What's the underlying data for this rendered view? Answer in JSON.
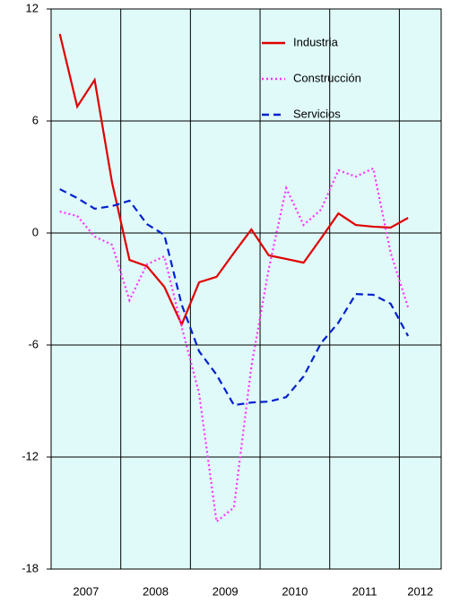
{
  "chart_data": {
    "type": "line",
    "x": [
      2007.125,
      2007.375,
      2007.625,
      2007.875,
      2008.125,
      2008.375,
      2008.625,
      2008.875,
      2009.125,
      2009.375,
      2009.625,
      2009.875,
      2010.125,
      2010.375,
      2010.625,
      2010.875,
      2011.125,
      2011.375,
      2011.625,
      2011.875,
      2012.125
    ],
    "xlim": [
      2007,
      2012.6
    ],
    "xticks": [
      {
        "value": 2007.5,
        "label": "2007"
      },
      {
        "value": 2008.5,
        "label": "2008"
      },
      {
        "value": 2009.5,
        "label": "2009"
      },
      {
        "value": 2010.5,
        "label": "2010"
      },
      {
        "value": 2011.5,
        "label": "2011"
      },
      {
        "value": 2012.3,
        "label": "2012"
      }
    ],
    "xgrid": [
      2008,
      2009,
      2010,
      2011,
      2012
    ],
    "ylim": [
      -18,
      12
    ],
    "yticks": [
      -18,
      -12,
      -6,
      0,
      6,
      12
    ],
    "grid": true,
    "background": "#e0fafa",
    "legend": "top-right",
    "series": [
      {
        "name": "Industria",
        "color": "#e00000",
        "style": "solid",
        "values": [
          10.66,
          6.77,
          8.2,
          2.7,
          -1.44,
          -1.78,
          -2.88,
          -4.9,
          -2.64,
          -2.35,
          -1.06,
          0.19,
          -1.2,
          -1.39,
          -1.59,
          -0.29,
          1.05,
          0.43,
          0.34,
          0.29,
          0.81
        ]
      },
      {
        "name": "Construcción",
        "color": "#ff30ff",
        "style": "dotted",
        "values": [
          1.15,
          0.91,
          -0.19,
          -0.63,
          -3.6,
          -1.68,
          -1.25,
          -5.04,
          -8.6,
          -15.46,
          -14.7,
          -7.15,
          -1.92,
          2.4,
          0.43,
          1.25,
          3.36,
          3.02,
          3.46,
          -1.06,
          -3.99
        ]
      },
      {
        "name": "Servicios",
        "color": "#0020d0",
        "style": "dashed",
        "values": [
          2.35,
          1.87,
          1.3,
          1.44,
          1.73,
          0.48,
          -0.1,
          -3.84,
          -6.34,
          -7.59,
          -9.22,
          -9.08,
          -9.03,
          -8.79,
          -7.68,
          -5.9,
          -4.8,
          -3.27,
          -3.31,
          -3.79,
          -5.52
        ]
      }
    ]
  }
}
